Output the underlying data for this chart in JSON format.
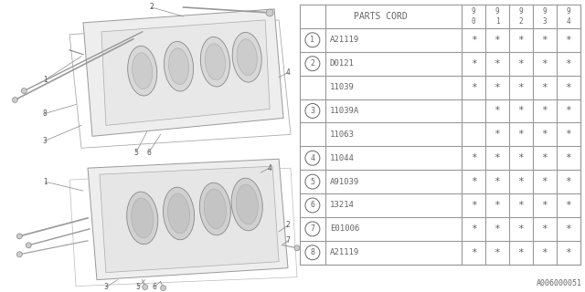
{
  "bg_color": "#ffffff",
  "rows": [
    {
      "num": "1",
      "part": "A21119",
      "cols": [
        "*",
        "*",
        "*",
        "*",
        "*"
      ]
    },
    {
      "num": "2",
      "part": "D0121",
      "cols": [
        "*",
        "*",
        "*",
        "*",
        "*"
      ]
    },
    {
      "num": "",
      "part": "11039",
      "cols": [
        "*",
        "*",
        "*",
        "*",
        "*"
      ]
    },
    {
      "num": "3",
      "part": "11039A",
      "cols": [
        "",
        "*",
        "*",
        "*",
        "*"
      ]
    },
    {
      "num": "",
      "part": "11063",
      "cols": [
        "",
        "*",
        "*",
        "*",
        "*"
      ]
    },
    {
      "num": "4",
      "part": "11044",
      "cols": [
        "*",
        "*",
        "*",
        "*",
        "*"
      ]
    },
    {
      "num": "5",
      "part": "A91039",
      "cols": [
        "*",
        "*",
        "*",
        "*",
        "*"
      ]
    },
    {
      "num": "6",
      "part": "13214",
      "cols": [
        "*",
        "*",
        "*",
        "*",
        "*"
      ]
    },
    {
      "num": "7",
      "part": "E01006",
      "cols": [
        "*",
        "*",
        "*",
        "*",
        "*"
      ]
    },
    {
      "num": "8",
      "part": "A21119",
      "cols": [
        "*",
        "*",
        "*",
        "*",
        "*"
      ]
    }
  ],
  "footer": "A006000051",
  "font_color": "#666666",
  "line_color": "#999999",
  "year_labels": [
    "9\n0",
    "9\n1",
    "9\n2",
    "9\n3",
    "9\n4"
  ]
}
